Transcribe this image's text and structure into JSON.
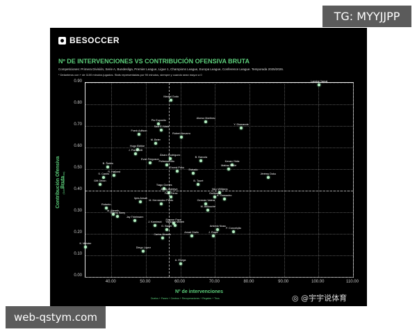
{
  "overlays": {
    "top_right_label": "TG: MYYJJPP",
    "bottom_left_label": "web-qstym.com",
    "weibo_watermark": "@宇宇说体育"
  },
  "header": {
    "logo_text": "BESOCCER",
    "title": "Nº DE INTERVENCIONES VS CONTRIBUCIÓN OFENSIVA BRUTA",
    "subtitle": "Competiciones: Primera División, Serie A, Bundesliga, Premier League, Ligue 1, Champions League, Europa League, Conference League. Temporada 2025/2026.",
    "note": "* Delanteros con + de 1100 minutos jugados. Stats representadas por 90 minutos, siempre y cuando sean mayor a 0"
  },
  "chart_data": {
    "type": "scatter",
    "title": "Nº DE INTERVENCIONES VS CONTRIBUCIÓN OFENSIVA BRUTA",
    "xlabel": "Nº de intervenciones",
    "xlabel_sub": "Duelos + Pases + Centros + Recuperaciones + Regates + Tiros",
    "ylabel": "Contribución Ofensiva Bruta",
    "ylabel_sub": "(Goles + Asistencias)",
    "xlim": [
      32.5,
      110
    ],
    "ylim": [
      0,
      0.9
    ],
    "xticks": [
      "40.00",
      "50.00",
      "60.00",
      "70.00",
      "80.00",
      "90.00",
      "100.00",
      "110.00"
    ],
    "yticks": [
      "0.00",
      "0.10",
      "0.20",
      "0.30",
      "0.40",
      "0.50",
      "0.60",
      "0.70",
      "0.80",
      "0.90"
    ],
    "grid": true,
    "mean_lines": {
      "x": 56.6,
      "y": 0.4
    },
    "points": [
      {
        "name": "Lamine Yamal",
        "x": 100.2,
        "y": 0.89
      },
      {
        "name": "Martial Godo",
        "x": 57.3,
        "y": 0.82
      },
      {
        "name": "Alonso Martínez",
        "x": 67.4,
        "y": 0.72
      },
      {
        "name": "Pio Esposito",
        "x": 53.7,
        "y": 0.71
      },
      {
        "name": "Y. Diomande",
        "x": 77.6,
        "y": 0.69
      },
      {
        "name": "Said El Mala",
        "x": 54.5,
        "y": 0.68
      },
      {
        "name": "Frank Adilson",
        "x": 48.0,
        "y": 0.66
      },
      {
        "name": "Robert Navarro",
        "x": 60.3,
        "y": 0.65
      },
      {
        "name": "M. Beier",
        "x": 52.8,
        "y": 0.62
      },
      {
        "name": "Hugo Ekitike",
        "x": 47.5,
        "y": 0.59
      },
      {
        "name": "J. Panichelli",
        "x": 47.0,
        "y": 0.57
      },
      {
        "name": "Álvaro Rodríguez",
        "x": 57.0,
        "y": 0.55
      },
      {
        "name": "Evan Ferguson",
        "x": 51.2,
        "y": 0.53
      },
      {
        "name": "Poliseno Nito",
        "x": 56.0,
        "y": 0.52
      },
      {
        "name": "B. Barcola",
        "x": 66.0,
        "y": 0.54
      },
      {
        "name": "Kenan Yildiz",
        "x": 75.0,
        "y": 0.52
      },
      {
        "name": "Matías Soulé",
        "x": 74.0,
        "y": 0.5
      },
      {
        "name": "B. Šeško",
        "x": 39.0,
        "y": 0.51
      },
      {
        "name": "R. Højlund",
        "x": 40.8,
        "y": 0.47
      },
      {
        "name": "S. Castro",
        "x": 37.8,
        "y": 0.46
      },
      {
        "name": "Ernest Poku",
        "x": 59.0,
        "y": 0.49
      },
      {
        "name": "Estrada",
        "x": 63.7,
        "y": 0.48
      },
      {
        "name": "Jérémy Doku",
        "x": 85.4,
        "y": 0.46
      },
      {
        "name": "Gift Orban",
        "x": 36.7,
        "y": 0.43
      },
      {
        "name": "B. Touré",
        "x": 65.2,
        "y": 0.43
      },
      {
        "name": "Tiago Gomes",
        "x": 55.3,
        "y": 0.41
      },
      {
        "name": "Jonas Adeleye",
        "x": 56.7,
        "y": 0.39
      },
      {
        "name": "Nico Williams",
        "x": 71.4,
        "y": 0.39
      },
      {
        "name": "Guillermo",
        "x": 70.0,
        "y": 0.37
      },
      {
        "name": "A. Garnacho",
        "x": 72.7,
        "y": 0.36
      },
      {
        "name": "Fran Pérez",
        "x": 57.3,
        "y": 0.37
      },
      {
        "name": "Ilyes Ansah",
        "x": 48.5,
        "y": 0.35
      },
      {
        "name": "M. Hernández Pardo",
        "x": 54.4,
        "y": 0.34
      },
      {
        "name": "Germán Valera",
        "x": 67.4,
        "y": 0.34
      },
      {
        "name": "M. Akliouche",
        "x": 68.0,
        "y": 0.31
      },
      {
        "name": "Roberto",
        "x": 38.5,
        "y": 0.32
      },
      {
        "name": "M. Biereth",
        "x": 40.5,
        "y": 0.29
      },
      {
        "name": "Thierry Barry",
        "x": 41.8,
        "y": 0.28
      },
      {
        "name": "Jay Thielmann",
        "x": 46.8,
        "y": 0.26
      },
      {
        "name": "J. Kaminski",
        "x": 52.6,
        "y": 0.24
      },
      {
        "name": "Simone Pace",
        "x": 58.0,
        "y": 0.25
      },
      {
        "name": "Yankuba Minteh",
        "x": 58.4,
        "y": 0.24
      },
      {
        "name": "G. Bader",
        "x": 56.0,
        "y": 0.22
      },
      {
        "name": "Antonio Nusa",
        "x": 70.8,
        "y": 0.22
      },
      {
        "name": "F. Conceição",
        "x": 75.4,
        "y": 0.21
      },
      {
        "name": "Carlos Álvarez",
        "x": 54.8,
        "y": 0.18
      },
      {
        "name": "Amad Diallo",
        "x": 63.2,
        "y": 0.19
      },
      {
        "name": "J. Rowe",
        "x": 69.5,
        "y": 0.19
      },
      {
        "name": "K. Meister",
        "x": 32.5,
        "y": 0.14
      },
      {
        "name": "Diego López",
        "x": 49.3,
        "y": 0.12
      },
      {
        "name": "A. Elorga",
        "x": 60.0,
        "y": 0.06
      }
    ]
  }
}
